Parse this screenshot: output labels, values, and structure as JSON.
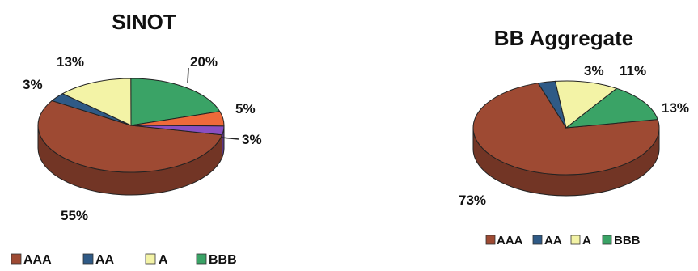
{
  "chart_data": [
    {
      "type": "pie",
      "title": "SINOT",
      "slices": [
        {
          "label": "AAA",
          "value": 55,
          "display": "55%",
          "color": "#9e4a33"
        },
        {
          "label": "AA",
          "value": 3,
          "display": "3%",
          "color": "#2f5a86"
        },
        {
          "label": "A",
          "value": 13,
          "display": "13%",
          "color": "#f3f3a6"
        },
        {
          "label": "BBB",
          "value": 20,
          "display": "20%",
          "color": "#3aa366"
        },
        {
          "label": "",
          "value": 5,
          "display": "5%",
          "color": "#ee6a3a"
        },
        {
          "label": "",
          "value": 3,
          "display": "3%",
          "color": "#8a4fc2"
        }
      ],
      "legend": [
        "AAA",
        "AA",
        "A",
        "BBB"
      ],
      "legend_position": "bottom"
    },
    {
      "type": "pie",
      "title": "BB Aggregate",
      "slices": [
        {
          "label": "AAA",
          "value": 73,
          "display": "73%",
          "color": "#9e4a33"
        },
        {
          "label": "AA",
          "value": 3,
          "display": "3%",
          "color": "#2f5a86"
        },
        {
          "label": "A",
          "value": 11,
          "display": "11%",
          "color": "#f3f3a6"
        },
        {
          "label": "BBB",
          "value": 13,
          "display": "13%",
          "color": "#3aa366"
        }
      ],
      "legend": [
        "AAA",
        "AA",
        "A",
        "BBB"
      ],
      "legend_position": "bottom"
    }
  ]
}
